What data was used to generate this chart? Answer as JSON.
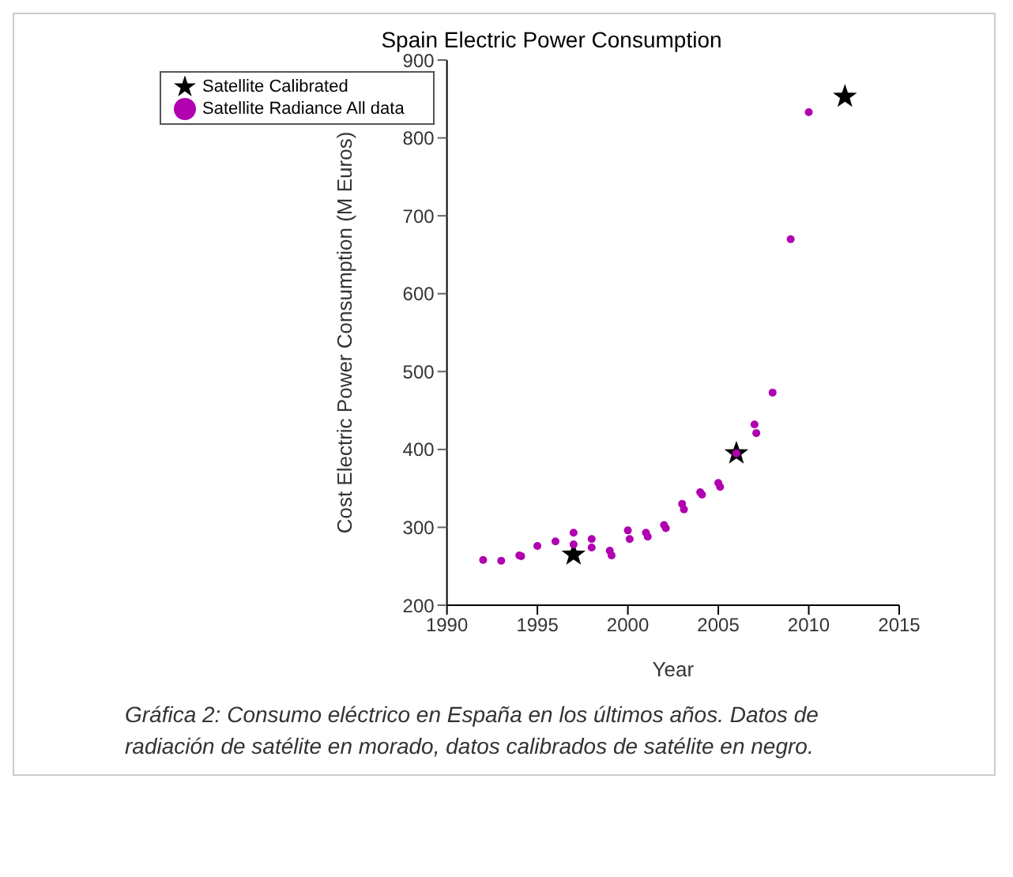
{
  "chart_data": {
    "type": "scatter",
    "title": "Spain Electric Power Consumption",
    "xlabel": "Year",
    "ylabel": "Cost Electric Power Consumption (M Euros)",
    "xlim": [
      1990,
      2015
    ],
    "xticks": [
      1990,
      1995,
      2000,
      2005,
      2010,
      2015
    ],
    "ylim": [
      200,
      900
    ],
    "yticks": [
      200,
      300,
      400,
      500,
      600,
      700,
      800,
      900
    ],
    "grid": false,
    "legend": "top left",
    "series": [
      {
        "name": "Satellite Calibrated",
        "color": "#000000",
        "marker": "star",
        "x": [
          1997,
          2006,
          2012
        ],
        "values": [
          265,
          395,
          853
        ]
      },
      {
        "name": "Satellite Radiance All data",
        "color": "#b000b0",
        "marker": "circle",
        "x": [
          1992,
          1993,
          1994,
          1994.1,
          1995,
          1996,
          1997,
          1997,
          1998,
          1998,
          1999,
          1999.1,
          2000,
          2000.1,
          2001,
          2001.1,
          2002,
          2002.1,
          2003,
          2003.1,
          2004,
          2004.1,
          2005,
          2005.1,
          2006,
          2007,
          2007.1,
          2008,
          2009,
          2010
        ],
        "values": [
          258,
          257,
          264,
          263,
          276,
          282,
          293,
          278,
          285,
          274,
          270,
          264,
          296,
          285,
          293,
          288,
          303,
          299,
          330,
          323,
          345,
          342,
          357,
          352,
          395,
          432,
          421,
          473,
          670,
          833
        ]
      }
    ],
    "annotations": [
      "Gráfica 2: Consumo eléctrico en España en los últimos años. Datos de radiación de satélite en morado, datos calibrados de satélite en negro."
    ]
  }
}
